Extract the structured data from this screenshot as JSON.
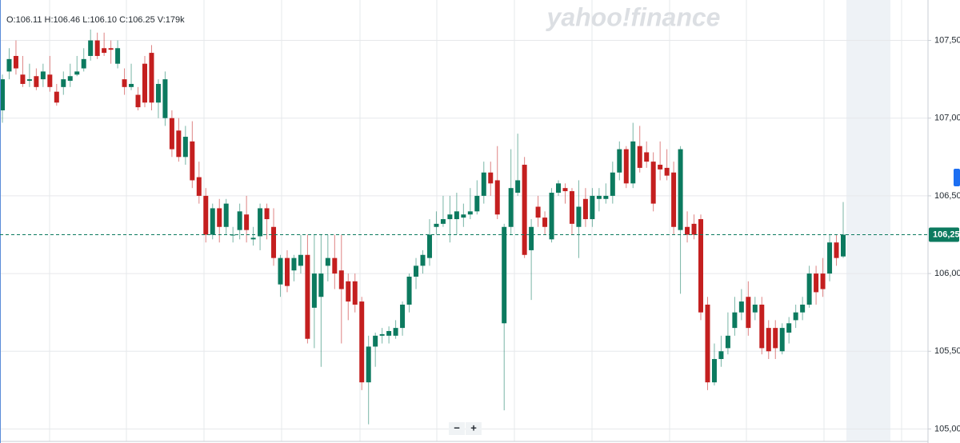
{
  "chart_data": {
    "type": "candlestick",
    "watermark": "yahoo!finance",
    "ohlc_label": "O:106.11 H:106.46 L:106.10 C:106.25 V:179k",
    "zoom_out": "−",
    "zoom_in": "+",
    "up_color": "#0c7a5f",
    "down_color": "#c41f1f",
    "grid": true,
    "ylim": [
      104.92,
      107.76
    ],
    "yticks": [
      {
        "value": 105.0,
        "label": "105,00"
      },
      {
        "value": 105.5,
        "label": "105,50"
      },
      {
        "value": 106.0,
        "label": "106,00"
      },
      {
        "value": 106.5,
        "label": "106,50"
      },
      {
        "value": 107.0,
        "label": "107,00"
      },
      {
        "value": 107.5,
        "label": "107,50"
      }
    ],
    "last_price": {
      "value": 106.25,
      "label": "106,25"
    },
    "open": [
      107.05,
      107.3,
      107.4,
      107.28,
      107.24,
      107.27,
      107.25,
      107.28,
      107.17,
      107.2,
      107.24,
      107.28,
      107.32,
      107.4,
      107.5,
      107.45,
      107.45,
      107.35,
      107.25,
      107.2,
      107.15,
      107.35,
      107.42,
      107.1,
      107.0,
      107.0,
      106.92,
      106.75,
      106.85,
      106.62,
      106.5,
      106.25,
      106.42,
      106.3,
      106.25,
      106.28,
      106.38,
      106.22,
      106.24,
      106.42,
      106.3,
      105.93,
      106.1,
      106.02,
      106.05,
      106.12,
      105.78,
      105.85,
      106.05,
      106.1,
      106.02,
      105.95,
      105.95,
      105.82,
      105.3,
      105.53,
      105.6,
      105.6,
      105.6,
      105.65,
      105.8,
      105.98,
      106.05,
      106.1,
      106.3,
      106.32,
      106.35,
      106.35,
      106.36,
      106.38,
      106.4,
      106.5,
      106.65,
      106.6,
      105.68,
      106.3,
      106.52,
      106.7,
      106.15,
      106.43,
      106.36,
      106.22,
      106.52,
      106.55,
      106.53,
      106.3,
      106.48,
      106.35,
      106.48,
      106.48,
      106.5,
      106.65,
      106.8,
      106.58,
      106.82,
      106.78,
      106.72,
      106.7,
      106.68,
      106.65,
      106.28,
      106.3,
      106.32,
      106.35,
      105.8,
      105.3,
      105.45,
      105.52,
      105.65,
      105.75,
      105.85,
      105.75,
      105.8,
      105.65,
      105.65,
      105.5,
      105.62,
      105.7,
      105.75,
      105.8,
      106.0,
      106.0,
      106.0,
      106.2,
      106.11
    ],
    "high": [
      107.28,
      107.45,
      107.5,
      107.4,
      107.35,
      107.32,
      107.35,
      107.4,
      107.22,
      107.3,
      107.35,
      107.4,
      107.45,
      107.57,
      107.55,
      107.55,
      107.5,
      107.5,
      107.32,
      107.35,
      107.2,
      107.4,
      107.47,
      107.25,
      107.3,
      107.05,
      107.0,
      106.95,
      106.98,
      106.72,
      106.55,
      106.45,
      106.48,
      106.48,
      106.3,
      106.45,
      106.5,
      106.3,
      106.45,
      106.45,
      106.42,
      106.12,
      106.15,
      106.12,
      106.25,
      106.25,
      106.25,
      106.25,
      106.25,
      106.25,
      106.25,
      106.0,
      106.0,
      105.85,
      105.6,
      105.62,
      105.65,
      105.66,
      105.7,
      105.82,
      106.0,
      106.1,
      106.15,
      106.35,
      106.4,
      106.5,
      106.5,
      106.52,
      106.45,
      106.55,
      106.6,
      106.72,
      106.72,
      106.82,
      106.32,
      106.8,
      106.9,
      106.75,
      106.35,
      106.5,
      106.4,
      106.55,
      106.6,
      106.58,
      106.55,
      106.6,
      106.55,
      106.55,
      106.55,
      106.58,
      106.72,
      106.85,
      106.82,
      106.97,
      106.95,
      106.85,
      106.78,
      106.85,
      106.8,
      106.72,
      106.82,
      106.4,
      106.38,
      106.38,
      105.85,
      105.55,
      105.6,
      105.75,
      105.85,
      105.9,
      105.95,
      105.85,
      105.85,
      105.7,
      105.7,
      105.68,
      105.72,
      105.8,
      105.85,
      106.05,
      106.05,
      106.1,
      106.25,
      106.25,
      106.46
    ],
    "low": [
      106.97,
      107.25,
      107.28,
      107.2,
      107.2,
      107.18,
      107.2,
      107.17,
      107.08,
      107.15,
      107.2,
      107.27,
      107.3,
      107.37,
      107.38,
      107.4,
      107.35,
      107.32,
      107.15,
      107.18,
      107.05,
      107.07,
      107.05,
      107.0,
      106.95,
      106.75,
      106.72,
      106.7,
      106.55,
      106.45,
      106.2,
      106.22,
      106.2,
      106.25,
      106.2,
      106.22,
      106.2,
      106.18,
      106.15,
      106.22,
      106.05,
      105.85,
      105.88,
      105.95,
      106.0,
      105.55,
      105.52,
      105.4,
      105.95,
      105.9,
      105.55,
      105.7,
      105.75,
      105.25,
      105.03,
      105.4,
      105.55,
      105.55,
      105.58,
      105.6,
      105.75,
      105.9,
      106.0,
      106.05,
      106.25,
      106.3,
      106.2,
      106.25,
      106.3,
      106.35,
      106.38,
      106.45,
      106.5,
      106.35,
      105.12,
      106.25,
      106.5,
      106.1,
      105.83,
      106.3,
      106.25,
      106.2,
      106.5,
      106.45,
      106.25,
      106.1,
      106.3,
      106.3,
      106.4,
      106.45,
      106.45,
      106.6,
      106.55,
      106.55,
      106.65,
      106.68,
      106.4,
      106.6,
      106.6,
      106.25,
      105.87,
      106.2,
      106.22,
      105.7,
      105.25,
      105.28,
      105.4,
      105.48,
      105.6,
      105.7,
      105.6,
      105.7,
      105.48,
      105.45,
      105.45,
      105.48,
      105.55,
      105.65,
      105.7,
      105.78,
      105.8,
      105.85,
      105.95,
      106.05,
      106.1
    ],
    "close": [
      107.25,
      107.38,
      107.32,
      107.22,
      107.25,
      107.2,
      107.3,
      107.2,
      107.1,
      107.25,
      107.27,
      107.3,
      107.38,
      107.5,
      107.4,
      107.42,
      107.44,
      107.45,
      107.2,
      107.22,
      107.07,
      107.1,
      107.1,
      107.22,
      107.25,
      106.8,
      106.75,
      106.88,
      106.6,
      106.5,
      106.25,
      106.42,
      106.3,
      106.45,
      106.25,
      106.4,
      106.28,
      106.23,
      106.42,
      106.35,
      106.1,
      106.1,
      105.92,
      106.1,
      106.12,
      105.58,
      106.0,
      106.0,
      106.1,
      106.0,
      105.9,
      105.82,
      105.8,
      105.3,
      105.53,
      105.6,
      105.61,
      105.63,
      105.65,
      105.8,
      105.98,
      106.05,
      106.12,
      106.25,
      106.32,
      106.35,
      106.38,
      106.4,
      106.38,
      106.4,
      106.5,
      106.65,
      106.58,
      106.38,
      106.3,
      106.55,
      106.6,
      106.12,
      106.3,
      106.36,
      106.3,
      106.52,
      106.58,
      106.53,
      106.32,
      106.43,
      106.35,
      106.5,
      106.5,
      106.5,
      106.65,
      106.8,
      106.58,
      106.85,
      106.68,
      106.72,
      106.45,
      106.67,
      106.63,
      106.3,
      106.8,
      106.25,
      106.25,
      105.75,
      105.3,
      105.45,
      105.5,
      105.6,
      105.75,
      105.82,
      105.65,
      105.8,
      105.52,
      105.5,
      105.52,
      105.65,
      105.68,
      105.75,
      105.8,
      106.0,
      105.88,
      105.9,
      106.2,
      106.1,
      106.25
    ]
  }
}
